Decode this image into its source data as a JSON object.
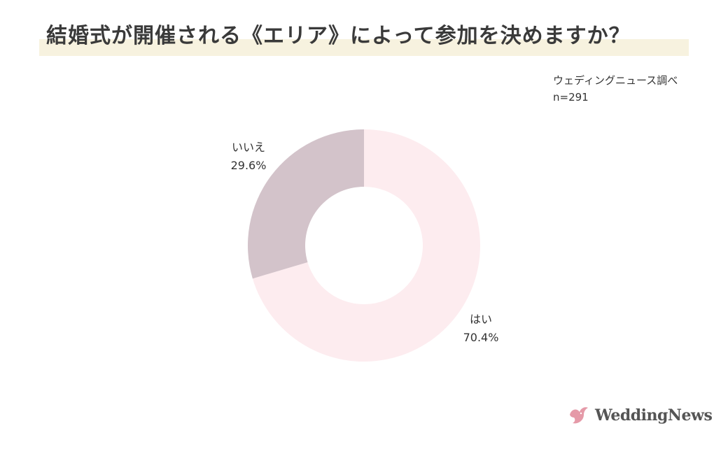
{
  "title": "結婚式が開催される《エリア》によって参加を決めますか？",
  "source": {
    "line1": "ウェディングニュース調べ",
    "line2": "n=291"
  },
  "chart_data": {
    "type": "pie",
    "donut": true,
    "slices": [
      {
        "label": "はい",
        "value": 70.4,
        "value_label": "70.4%",
        "color": "#fdecef"
      },
      {
        "label": "いいえ",
        "value": 29.6,
        "value_label": "29.6%",
        "color": "#d3c3ca"
      }
    ]
  },
  "logo": {
    "text": "WeddingNews",
    "icon": "dove-icon"
  }
}
